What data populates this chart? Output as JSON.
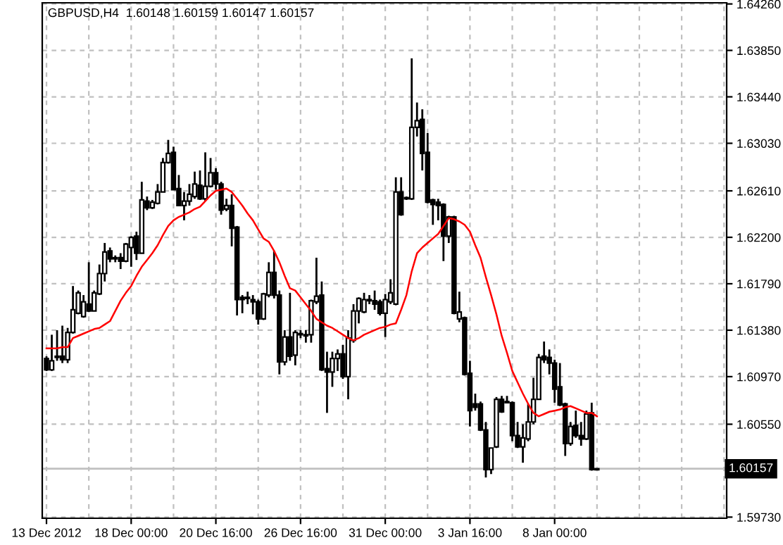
{
  "chart_data": {
    "type": "candlestick",
    "title": "GBPUSD,H4  1.60148 1.60159 1.60147 1.60157",
    "categories": [
      "13 Dec 2012",
      null,
      null,
      null,
      null,
      null,
      null,
      null,
      null,
      null,
      null,
      null,
      null,
      null,
      null,
      null,
      "18 Dec 00:00",
      null,
      null,
      null,
      null,
      null,
      null,
      null,
      null,
      null,
      null,
      null,
      null,
      null,
      null,
      null,
      "20 Dec 16:00",
      null,
      null,
      null,
      null,
      null,
      null,
      null,
      null,
      null,
      null,
      null,
      null,
      null,
      null,
      null,
      "26 Dec 16:00",
      null,
      null,
      null,
      null,
      null,
      null,
      null,
      null,
      null,
      null,
      null,
      null,
      null,
      null,
      null,
      "31 Dec 00:00",
      null,
      null,
      null,
      null,
      null,
      null,
      null,
      null,
      null,
      null,
      null,
      null,
      null,
      null,
      null,
      "3 Jan 16:00",
      null,
      null,
      null,
      null,
      null,
      null,
      null,
      null,
      null,
      null,
      null,
      null,
      null,
      null,
      null,
      "8 Jan 00:00",
      null,
      null,
      null,
      null,
      null,
      null,
      null,
      null
    ],
    "ohlc": [
      [
        1.6113,
        1.6115,
        1.6102,
        1.6103
      ],
      [
        1.6103,
        1.6134,
        1.6102,
        1.6111
      ],
      [
        1.6114,
        1.6138,
        1.6111,
        1.6115
      ],
      [
        1.6115,
        1.6142,
        1.6109,
        1.6112
      ],
      [
        1.6112,
        1.614,
        1.6109,
        1.6136
      ],
      [
        1.6136,
        1.6177,
        1.6135,
        1.6156
      ],
      [
        1.6153,
        1.6173,
        1.6152,
        1.6171
      ],
      [
        1.615,
        1.6169,
        1.6149,
        1.6163
      ],
      [
        1.6161,
        1.6198,
        1.6154,
        1.6155
      ],
      [
        1.6155,
        1.6173,
        1.6155,
        1.6171
      ],
      [
        1.617,
        1.6196,
        1.6169,
        1.6188
      ],
      [
        1.6188,
        1.6215,
        1.6181,
        1.6207
      ],
      [
        1.6208,
        1.6211,
        1.6198,
        1.6201
      ],
      [
        1.6202,
        1.6204,
        1.6198,
        1.6201
      ],
      [
        1.6202,
        1.6206,
        1.6192,
        1.6199
      ],
      [
        1.6199,
        1.6215,
        1.6198,
        1.6214
      ],
      [
        1.6211,
        1.6221,
        1.6194,
        1.622
      ],
      [
        1.6221,
        1.6225,
        1.62,
        1.6206
      ],
      [
        1.6206,
        1.6269,
        1.6206,
        1.6253
      ],
      [
        1.6252,
        1.6256,
        1.6244,
        1.6246
      ],
      [
        1.6246,
        1.6253,
        1.6245,
        1.6251
      ],
      [
        1.625,
        1.6267,
        1.6249,
        1.626
      ],
      [
        1.626,
        1.629,
        1.626,
        1.6286
      ],
      [
        1.6286,
        1.6306,
        1.6285,
        1.6294
      ],
      [
        1.6295,
        1.63,
        1.6262,
        1.6262
      ],
      [
        1.6263,
        1.6275,
        1.6248,
        1.6248
      ],
      [
        1.6248,
        1.626,
        1.6235,
        1.6252
      ],
      [
        1.6252,
        1.6267,
        1.6248,
        1.6258
      ],
      [
        1.6256,
        1.6278,
        1.6254,
        1.6267
      ],
      [
        1.6266,
        1.6279,
        1.6253,
        1.6254
      ],
      [
        1.6254,
        1.6295,
        1.6252,
        1.6265
      ],
      [
        1.6265,
        1.629,
        1.6264,
        1.6277
      ],
      [
        1.6277,
        1.6281,
        1.6262,
        1.6267
      ],
      [
        1.6267,
        1.6269,
        1.624,
        1.6244
      ],
      [
        1.6245,
        1.6254,
        1.6243,
        1.6248
      ],
      [
        1.6248,
        1.6258,
        1.6212,
        1.6228
      ],
      [
        1.6229,
        1.623,
        1.6151,
        1.6165
      ],
      [
        1.6167,
        1.6169,
        1.6153,
        1.6165
      ],
      [
        1.6166,
        1.6172,
        1.6161,
        1.6167
      ],
      [
        1.6165,
        1.6169,
        1.6152,
        1.6163
      ],
      [
        1.6163,
        1.6165,
        1.6143,
        1.6148
      ],
      [
        1.6148,
        1.6171,
        1.6147,
        1.617
      ],
      [
        1.6169,
        1.6198,
        1.6167,
        1.6189
      ],
      [
        1.6189,
        1.6208,
        1.6166,
        1.6169
      ],
      [
        1.6169,
        1.6173,
        1.6099,
        1.611
      ],
      [
        1.611,
        1.6138,
        1.6107,
        1.6132
      ],
      [
        1.6132,
        1.6171,
        1.6111,
        1.6115
      ],
      [
        1.6116,
        1.6138,
        1.6107,
        1.6136
      ],
      [
        1.6134,
        1.6138,
        1.6131,
        1.6135
      ],
      [
        1.6134,
        1.6138,
        1.6127,
        1.6133
      ],
      [
        1.6134,
        1.6165,
        1.6127,
        1.6164
      ],
      [
        1.6163,
        1.6202,
        1.6161,
        1.6168
      ],
      [
        1.6169,
        1.6181,
        1.6102,
        1.6103
      ],
      [
        1.6104,
        1.6119,
        1.6065,
        1.6101
      ],
      [
        1.6101,
        1.6119,
        1.6088,
        1.6113
      ],
      [
        1.6113,
        1.6121,
        1.6102,
        1.6117
      ],
      [
        1.6117,
        1.6125,
        1.6095,
        1.6097
      ],
      [
        1.6097,
        1.6138,
        1.6077,
        1.6131
      ],
      [
        1.6129,
        1.6161,
        1.6127,
        1.6155
      ],
      [
        1.6155,
        1.6167,
        1.6144,
        1.6166
      ],
      [
        1.6154,
        1.6171,
        1.6153,
        1.6165
      ],
      [
        1.6165,
        1.6169,
        1.6161,
        1.6164
      ],
      [
        1.6164,
        1.6173,
        1.6156,
        1.6161
      ],
      [
        1.6163,
        1.6165,
        1.6151,
        1.6153
      ],
      [
        1.6153,
        1.617,
        1.6132,
        1.6165
      ],
      [
        1.6163,
        1.6183,
        1.6161,
        1.6171
      ],
      [
        1.6161,
        1.6273,
        1.616,
        1.626
      ],
      [
        1.626,
        1.6273,
        1.6239,
        1.624
      ],
      [
        1.6255,
        1.6256,
        1.6253,
        1.6254
      ],
      [
        1.6254,
        1.6378,
        1.6253,
        1.6317
      ],
      [
        1.6317,
        1.6339,
        1.6309,
        1.6323
      ],
      [
        1.6324,
        1.6333,
        1.6279,
        1.6294
      ],
      [
        1.6295,
        1.6312,
        1.625,
        1.6251
      ],
      [
        1.6253,
        1.6254,
        1.6231,
        1.6249
      ],
      [
        1.6251,
        1.6254,
        1.6235,
        1.6248
      ],
      [
        1.6249,
        1.625,
        1.6199,
        1.6221
      ],
      [
        1.6221,
        1.6239,
        1.6215,
        1.6238
      ],
      [
        1.6238,
        1.6239,
        1.6152,
        1.6153
      ],
      [
        1.6148,
        1.6172,
        1.6145,
        1.6154
      ],
      [
        1.6149,
        1.615,
        1.6098,
        1.6099
      ],
      [
        1.61,
        1.6111,
        1.6053,
        1.6067
      ],
      [
        1.6073,
        1.6082,
        1.6067,
        1.607
      ],
      [
        1.6073,
        1.6075,
        1.6049,
        1.605
      ],
      [
        1.605,
        1.6057,
        1.6008,
        1.6015
      ],
      [
        1.6015,
        1.6034,
        1.6011,
        1.6034
      ],
      [
        1.6035,
        1.6079,
        1.6034,
        1.6077
      ],
      [
        1.6077,
        1.608,
        1.6065,
        1.6066
      ],
      [
        1.6075,
        1.608,
        1.6074,
        1.6074
      ],
      [
        1.6074,
        1.6075,
        1.604,
        1.6045
      ],
      [
        1.6045,
        1.6057,
        1.6034,
        1.6035
      ],
      [
        1.6035,
        1.6055,
        1.6021,
        1.6043
      ],
      [
        1.6042,
        1.6073,
        1.604,
        1.6057
      ],
      [
        1.6057,
        1.6096,
        1.6055,
        1.6077
      ],
      [
        1.6077,
        1.6117,
        1.6077,
        1.6114
      ],
      [
        1.6115,
        1.6128,
        1.6109,
        1.6112
      ],
      [
        1.6114,
        1.6121,
        1.6099,
        1.6109
      ],
      [
        1.6109,
        1.6112,
        1.6074,
        1.6086
      ],
      [
        1.6088,
        1.6109,
        1.6071,
        1.6072
      ],
      [
        1.6073,
        1.6074,
        1.6027,
        1.6038
      ],
      [
        1.6038,
        1.6057,
        1.6036,
        1.6053
      ],
      [
        1.6054,
        1.6067,
        1.6043,
        1.6045
      ],
      [
        1.6045,
        1.6057,
        1.6036,
        1.6042
      ],
      [
        1.6042,
        1.6067,
        1.6041,
        1.6064
      ],
      [
        1.6065,
        1.6074,
        1.6014,
        1.6015
      ],
      [
        1.60148,
        1.60159,
        1.60147,
        1.60157
      ]
    ],
    "series": [
      {
        "type": "line",
        "color": "#ff0000",
        "values": [
          1.6122,
          1.6122,
          1.6122,
          1.6123,
          1.6123,
          1.6131,
          1.6133,
          1.6135,
          1.6137,
          1.6139,
          1.614,
          1.6143,
          1.6146,
          1.6155,
          1.6164,
          1.6171,
          1.6177,
          1.6186,
          1.6194,
          1.62,
          1.6206,
          1.6213,
          1.6222,
          1.623,
          1.6235,
          1.6238,
          1.624,
          1.6242,
          1.6245,
          1.6247,
          1.6252,
          1.6257,
          1.6261,
          1.6262,
          1.6263,
          1.626,
          1.6254,
          1.6248,
          1.6241,
          1.6235,
          1.6227,
          1.6219,
          1.6216,
          1.6208,
          1.6198,
          1.6186,
          1.6175,
          1.6173,
          1.6167,
          1.6161,
          1.6155,
          1.6148,
          1.6145,
          1.6142,
          1.614,
          1.6137,
          1.6134,
          1.6131,
          1.6129,
          1.6131,
          1.6134,
          1.6136,
          1.6138,
          1.614,
          1.6141,
          1.6143,
          1.6144,
          1.6156,
          1.6169,
          1.619,
          1.6206,
          1.6211,
          1.6215,
          1.6219,
          1.6223,
          1.623,
          1.6237,
          1.6236,
          1.6234,
          1.6231,
          1.6225,
          1.6213,
          1.6202,
          1.6185,
          1.6169,
          1.6152,
          1.6133,
          1.6118,
          1.6102,
          1.6092,
          1.6082,
          1.6073,
          1.6065,
          1.6062,
          1.6064,
          1.6066,
          1.6067,
          1.6068,
          1.607,
          1.6071,
          1.6069,
          1.6067,
          1.6065,
          1.6065,
          1.6062
        ]
      }
    ],
    "ylim": [
      1.5972,
      1.6427
    ],
    "yticks": [
      {
        "value": 1.5973,
        "label": "1.59730"
      },
      {
        "value": 1.6055,
        "label": "1.60550"
      },
      {
        "value": 1.6097,
        "label": "1.60970"
      },
      {
        "value": 1.6138,
        "label": "1.61380"
      },
      {
        "value": 1.6179,
        "label": "1.61790"
      },
      {
        "value": 1.622,
        "label": "1.62200"
      },
      {
        "value": 1.6261,
        "label": "1.62610"
      },
      {
        "value": 1.6303,
        "label": "1.63030"
      },
      {
        "value": 1.6344,
        "label": "1.63440"
      },
      {
        "value": 1.6385,
        "label": "1.63850"
      },
      {
        "value": 1.6426,
        "label": "1.64260"
      }
    ],
    "ref_lines": [
      {
        "axis": "y",
        "value": 1.60157,
        "label": "1.60157",
        "color": "#c0c0c0"
      }
    ],
    "grid": true,
    "legend": false
  }
}
